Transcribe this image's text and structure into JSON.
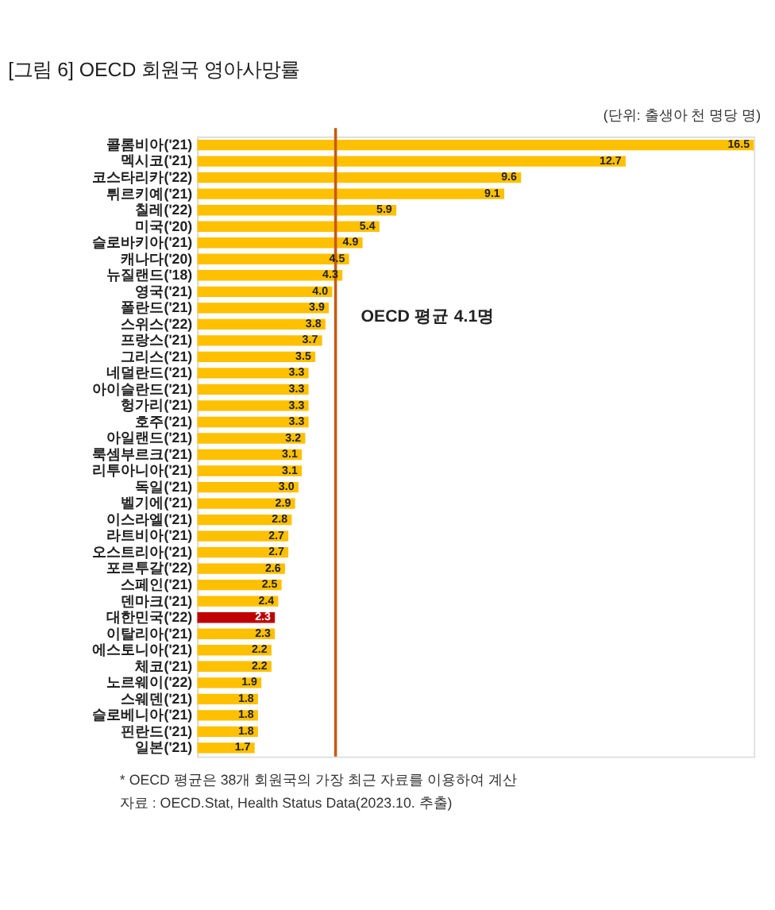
{
  "chart_data": {
    "type": "bar",
    "orientation": "horizontal",
    "title": "[그림 6] OECD 회원국 영아사망률",
    "subtitle": "(단위: 출생아 천 명당 명)",
    "categories": [
      "콜롬비아('21)",
      "멕시코('21)",
      "코스타리카('22)",
      "튀르키예('21)",
      "칠레('22)",
      "미국('20)",
      "슬로바키아('21)",
      "캐나다('20)",
      "뉴질랜드('18)",
      "영국('21)",
      "폴란드('21)",
      "스위스('22)",
      "프랑스('21)",
      "그리스('21)",
      "네덜란드('21)",
      "아이슬란드('21)",
      "헝가리('21)",
      "호주('21)",
      "아일랜드('21)",
      "룩셈부르크('21)",
      "리투아니아('21)",
      "독일('21)",
      "벨기에('21)",
      "이스라엘('21)",
      "라트비아('21)",
      "오스트리아('21)",
      "포르투갈('22)",
      "스페인('21)",
      "덴마크('21)",
      "대한민국('22)",
      "이탈리아('21)",
      "에스토니아('21)",
      "체코('21)",
      "노르웨이('22)",
      "스웨덴('21)",
      "슬로베니아('21)",
      "핀란드('21)",
      "일본('21)"
    ],
    "values": [
      16.5,
      12.7,
      9.6,
      9.1,
      5.9,
      5.4,
      4.9,
      4.5,
      4.3,
      4.0,
      3.9,
      3.8,
      3.7,
      3.5,
      3.3,
      3.3,
      3.3,
      3.3,
      3.2,
      3.1,
      3.1,
      3.0,
      2.9,
      2.8,
      2.7,
      2.7,
      2.6,
      2.5,
      2.4,
      2.3,
      2.3,
      2.2,
      2.2,
      1.9,
      1.8,
      1.8,
      1.8,
      1.7
    ],
    "value_labels": [
      "16.5",
      "12.7",
      "9.6",
      "9.1",
      "5.9",
      "5.4",
      "4.9",
      "4.5",
      "4.3",
      "4.0",
      "3.9",
      "3.8",
      "3.7",
      "3.5",
      "3.3",
      "3.3",
      "3.3",
      "3.3",
      "3.2",
      "3.1",
      "3.1",
      "3.0",
      "2.9",
      "2.8",
      "2.7",
      "2.7",
      "2.6",
      "2.5",
      "2.4",
      "2.3",
      "2.3",
      "2.2",
      "2.2",
      "1.9",
      "1.8",
      "1.8",
      "1.8",
      "1.7"
    ],
    "colors": [
      "#ffc000",
      "#ffc000",
      "#ffc000",
      "#ffc000",
      "#ffc000",
      "#ffc000",
      "#ffc000",
      "#ffc000",
      "#ffc000",
      "#ffc000",
      "#ffc000",
      "#ffc000",
      "#ffc000",
      "#ffc000",
      "#ffc000",
      "#ffc000",
      "#ffc000",
      "#ffc000",
      "#ffc000",
      "#ffc000",
      "#ffc000",
      "#ffc000",
      "#ffc000",
      "#ffc000",
      "#ffc000",
      "#ffc000",
      "#ffc000",
      "#ffc000",
      "#ffc000",
      "#c00000",
      "#ffc000",
      "#ffc000",
      "#ffc000",
      "#ffc000",
      "#ffc000",
      "#ffc000",
      "#ffc000",
      "#ffc000"
    ],
    "xlim": [
      0,
      16.5
    ],
    "tick_labels": "y",
    "grid": false,
    "ref_lines": [
      {
        "axis": "x",
        "value": 4.1,
        "label": "OECD 평균 4.1명",
        "color": "#c55a11"
      }
    ],
    "annotations": [
      "* OECD 평균은 38개 회원국의 가장 최근 자료를 이용하여 계산",
      "자료 : OECD.Stat, Health Status Data(2023.10. 추출)"
    ]
  }
}
